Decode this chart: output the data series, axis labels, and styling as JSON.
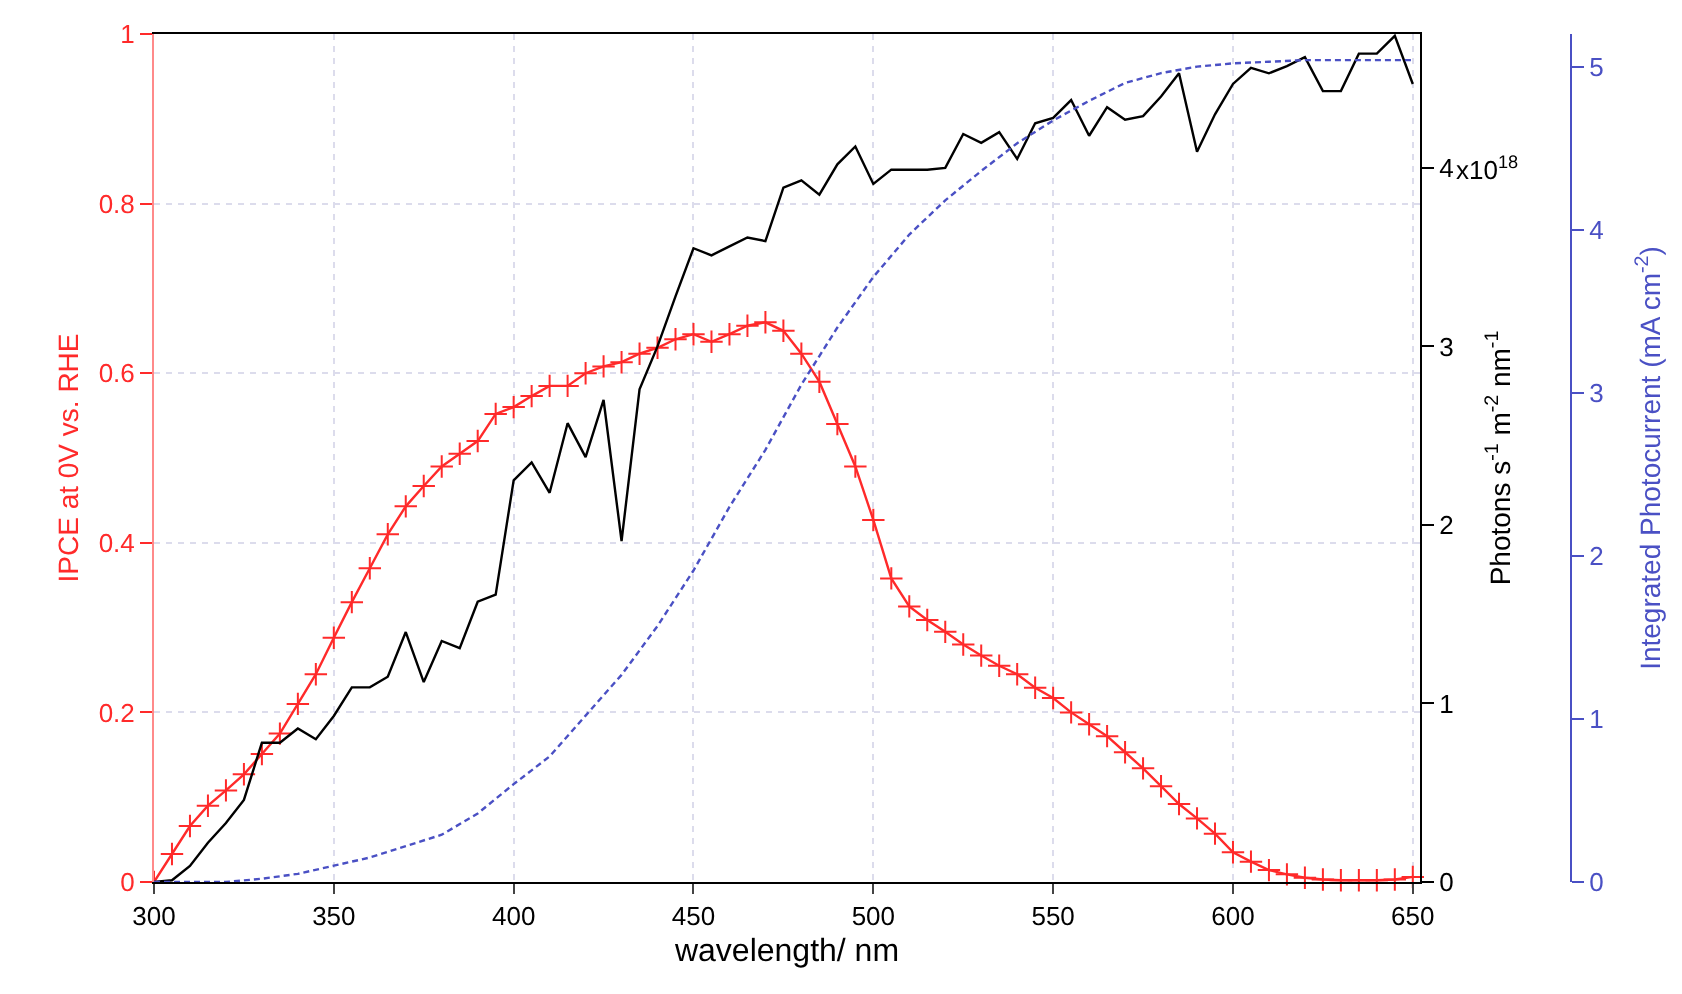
{
  "chart_data": {
    "type": "line",
    "xlabel": "wavelength/ nm",
    "ylabel": "IPCE at 0V vs. RHE",
    "y2label": "Photons s$^{-1}$ m$^{-2}$ nm$^{-1}$",
    "y3label": "Integrated Photocurrent (mA cm$^{-2}$)",
    "xlim": [
      300,
      652
    ],
    "xticks": [
      300,
      350,
      400,
      450,
      500,
      550,
      600,
      650
    ],
    "ylim": [
      0,
      1
    ],
    "yticks": [
      0.0,
      0.2,
      0.4,
      0.6,
      0.8,
      1.0
    ],
    "y2lim": [
      0,
      4.75
    ],
    "y2ticks": [
      0,
      1,
      2,
      3,
      4
    ],
    "annotations": [
      "x10$^{18}$"
    ],
    "y3lim": [
      0,
      5.2
    ],
    "y3ticks": [
      0,
      1,
      2,
      3,
      4,
      5
    ],
    "grid": true,
    "series": [
      {
        "color": "#ff2a2a",
        "marker": "cross",
        "line_style": "solid",
        "x": [
          300,
          305,
          310,
          315,
          320,
          325,
          330,
          335,
          340,
          345,
          350,
          355,
          360,
          365,
          370,
          375,
          380,
          385,
          390,
          395,
          400,
          405,
          410,
          415,
          420,
          425,
          430,
          435,
          440,
          445,
          450,
          455,
          460,
          465,
          470,
          475,
          480,
          485,
          490,
          495,
          500,
          505,
          510,
          515,
          520,
          525,
          530,
          535,
          540,
          545,
          550,
          555,
          560,
          565,
          570,
          575,
          580,
          585,
          590,
          595,
          600,
          605,
          610,
          615,
          620,
          625,
          630,
          635,
          640,
          645,
          650
        ],
        "values": [
          0.0,
          0.033,
          0.066,
          0.09,
          0.108,
          0.127,
          0.151,
          0.175,
          0.21,
          0.245,
          0.288,
          0.33,
          0.37,
          0.41,
          0.443,
          0.467,
          0.49,
          0.505,
          0.52,
          0.552,
          0.56,
          0.573,
          0.585,
          0.585,
          0.6,
          0.608,
          0.613,
          0.623,
          0.63,
          0.64,
          0.646,
          0.637,
          0.646,
          0.656,
          0.66,
          0.65,
          0.623,
          0.59,
          0.54,
          0.49,
          0.427,
          0.358,
          0.325,
          0.309,
          0.295,
          0.28,
          0.267,
          0.255,
          0.245,
          0.229,
          0.217,
          0.2,
          0.186,
          0.172,
          0.153,
          0.134,
          0.113,
          0.092,
          0.075,
          0.057,
          0.035,
          0.024,
          0.014,
          0.009,
          0.005,
          0.003,
          0.002,
          0.002,
          0.002,
          0.003,
          0.006
        ]
      },
      {
        "color": "#000000",
        "marker": "none",
        "line_style": "solid",
        "axis": "y2",
        "x": [
          300,
          305,
          310,
          315,
          320,
          325,
          330,
          335,
          340,
          345,
          350,
          355,
          360,
          365,
          370,
          375,
          380,
          385,
          390,
          395,
          400,
          405,
          410,
          415,
          420,
          425,
          430,
          435,
          440,
          445,
          450,
          455,
          460,
          465,
          470,
          475,
          480,
          485,
          490,
          495,
          500,
          505,
          510,
          515,
          520,
          525,
          530,
          535,
          540,
          545,
          550,
          555,
          560,
          565,
          570,
          575,
          580,
          585,
          590,
          595,
          600,
          605,
          610,
          615,
          620,
          625,
          630,
          635,
          640,
          645,
          650
        ],
        "values": [
          0,
          0.01,
          0.09,
          0.22,
          0.33,
          0.46,
          0.78,
          0.78,
          0.86,
          0.8,
          0.93,
          1.09,
          1.09,
          1.15,
          1.4,
          1.12,
          1.35,
          1.31,
          1.57,
          1.61,
          2.25,
          2.35,
          2.18,
          2.57,
          2.38,
          2.7,
          1.91,
          2.76,
          3.0,
          3.28,
          3.55,
          3.51,
          3.56,
          3.61,
          3.59,
          3.89,
          3.93,
          3.85,
          4.02,
          4.12,
          3.91,
          3.99,
          3.99,
          3.99,
          4.0,
          4.19,
          4.14,
          4.2,
          4.05,
          4.25,
          4.28,
          4.38,
          4.18,
          4.34,
          4.27,
          4.29,
          4.4,
          4.53,
          4.09,
          4.3,
          4.47,
          4.56,
          4.53,
          4.57,
          4.62,
          4.43,
          4.43,
          4.64,
          4.64,
          4.74,
          4.47
        ]
      },
      {
        "color": "#4a50c4",
        "marker": "none",
        "line_style": "dashed",
        "axis": "y3",
        "x": [
          300,
          310,
          320,
          330,
          340,
          350,
          360,
          370,
          380,
          390,
          400,
          410,
          420,
          430,
          440,
          450,
          460,
          470,
          480,
          490,
          500,
          510,
          520,
          530,
          540,
          550,
          560,
          570,
          580,
          590,
          600,
          610,
          620,
          630,
          640,
          650
        ],
        "values": [
          0,
          0,
          0,
          0.02,
          0.05,
          0.1,
          0.15,
          0.22,
          0.29,
          0.42,
          0.6,
          0.77,
          1.02,
          1.27,
          1.57,
          1.91,
          2.3,
          2.65,
          3.05,
          3.4,
          3.71,
          3.97,
          4.18,
          4.36,
          4.53,
          4.67,
          4.79,
          4.9,
          4.96,
          5.0,
          5.02,
          5.03,
          5.04,
          5.04,
          5.04,
          5.04
        ]
      }
    ]
  }
}
